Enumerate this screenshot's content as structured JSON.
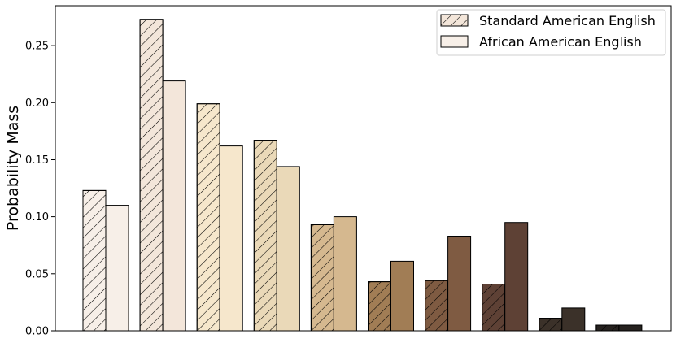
{
  "chart_data": {
    "type": "bar",
    "title": "",
    "xlabel": "",
    "ylabel": "Probability Mass",
    "ylim": [
      0,
      0.285
    ],
    "yticks": [
      0.0,
      0.05,
      0.1,
      0.15,
      0.2,
      0.25
    ],
    "ytick_labels": [
      "0.00",
      "0.05",
      "0.10",
      "0.15",
      "0.20",
      "0.25"
    ],
    "legend_position": "top-right",
    "grid": false,
    "categories": [
      "",
      "",
      "",
      "",
      "",
      "",
      "",
      "",
      "",
      ""
    ],
    "series": [
      {
        "name": "Standard American English",
        "hatch": "diagonal",
        "values": [
          0.123,
          0.273,
          0.199,
          0.167,
          0.093,
          0.043,
          0.044,
          0.041,
          0.011,
          0.005
        ]
      },
      {
        "name": "African American English",
        "hatch": "none",
        "values": [
          0.11,
          0.219,
          0.162,
          0.144,
          0.1,
          0.061,
          0.083,
          0.095,
          0.02,
          0.005
        ]
      }
    ],
    "category_colors": [
      "#f7efe8",
      "#f3e6da",
      "#f6e7cc",
      "#ead9b8",
      "#d5b88f",
      "#a17d55",
      "#7f5b42",
      "#5e4135",
      "#3b3129",
      "#26221f"
    ],
    "legend_colors": [
      "#f3e6da",
      "#f7efe8"
    ]
  }
}
